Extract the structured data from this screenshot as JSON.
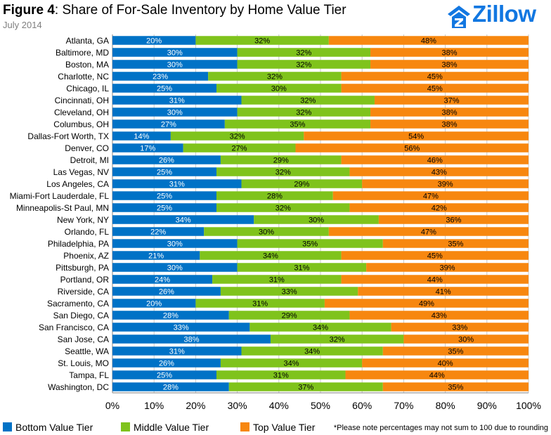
{
  "header": {
    "figure_label": "Figure 4",
    "title_text": ": Share of For-Sale Inventory by Home Value Tier",
    "subtitle": "July 2014",
    "logo_text": "Zillow"
  },
  "colors": {
    "bottom": "#0072c6",
    "middle": "#7fc31c",
    "top": "#f7870f",
    "logo": "#1277e1"
  },
  "legend": {
    "items": [
      {
        "label": "Bottom Value Tier",
        "color": "#0072c6"
      },
      {
        "label": "Middle Value Tier",
        "color": "#7fc31c"
      },
      {
        "label": "Top Value Tier",
        "color": "#f7870f"
      }
    ],
    "note": "*Please note percentages may not sum to 100 due to rounding"
  },
  "chart_data": {
    "type": "bar",
    "orientation": "horizontal",
    "stacked": true,
    "title": "Figure 4: Share of For-Sale Inventory by Home Value Tier",
    "subtitle": "July 2014",
    "xlim": [
      0,
      100
    ],
    "x_ticks": [
      "0%",
      "10%",
      "20%",
      "30%",
      "40%",
      "50%",
      "60%",
      "70%",
      "80%",
      "90%",
      "100%"
    ],
    "grid": true,
    "legend_position": "bottom",
    "categories": [
      "Atlanta, GA",
      "Baltimore, MD",
      "Boston, MA",
      "Charlotte, NC",
      "Chicago, IL",
      "Cincinnati, OH",
      "Cleveland, OH",
      "Columbus, OH",
      "Dallas-Fort Worth, TX",
      "Denver, CO",
      "Detroit, MI",
      "Las Vegas, NV",
      "Los Angeles, CA",
      "Miami-Fort Lauderdale, FL",
      "Minneapolis-St Paul, MN",
      "New York, NY",
      "Orlando, FL",
      "Philadelphia, PA",
      "Phoenix, AZ",
      "Pittsburgh, PA",
      "Portland, OR",
      "Riverside, CA",
      "Sacramento, CA",
      "San Diego, CA",
      "San Francisco, CA",
      "San Jose, CA",
      "Seattle, WA",
      "St. Louis, MO",
      "Tampa, FL",
      "Washington, DC"
    ],
    "series": [
      {
        "name": "Bottom Value Tier",
        "values": [
          20,
          30,
          30,
          23,
          25,
          31,
          30,
          27,
          14,
          17,
          26,
          25,
          31,
          25,
          25,
          34,
          22,
          30,
          21,
          30,
          24,
          26,
          20,
          28,
          33,
          38,
          31,
          26,
          25,
          28
        ]
      },
      {
        "name": "Middle Value Tier",
        "values": [
          32,
          32,
          32,
          32,
          30,
          32,
          32,
          35,
          32,
          27,
          29,
          32,
          29,
          28,
          32,
          30,
          30,
          35,
          34,
          31,
          31,
          33,
          31,
          29,
          34,
          32,
          34,
          34,
          31,
          37
        ]
      },
      {
        "name": "Top Value Tier",
        "values": [
          48,
          38,
          38,
          45,
          45,
          37,
          38,
          38,
          54,
          56,
          46,
          43,
          39,
          47,
          42,
          36,
          47,
          35,
          45,
          39,
          44,
          41,
          49,
          43,
          33,
          30,
          35,
          40,
          44,
          35
        ]
      }
    ]
  }
}
